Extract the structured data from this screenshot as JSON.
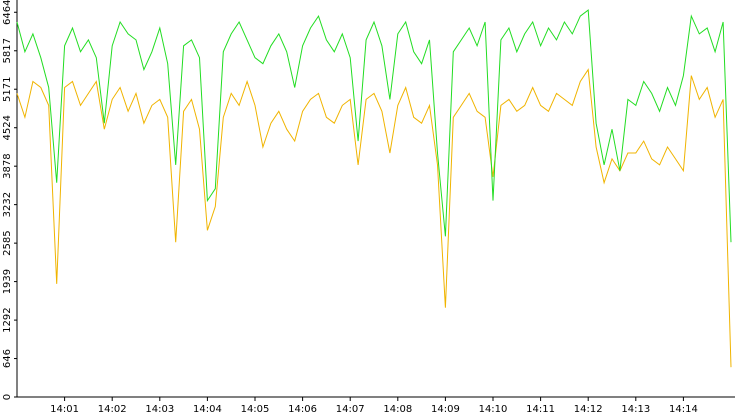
{
  "chart_data": {
    "type": "line",
    "categories": [
      null,
      null,
      null,
      null,
      null,
      null,
      "14:01",
      null,
      null,
      null,
      null,
      null,
      "14:02",
      null,
      null,
      null,
      null,
      null,
      "14:03",
      null,
      null,
      null,
      null,
      null,
      "14:04",
      null,
      null,
      null,
      null,
      null,
      "14:05",
      null,
      null,
      null,
      null,
      null,
      "14:06",
      null,
      null,
      null,
      null,
      null,
      "14:07",
      null,
      null,
      null,
      null,
      null,
      "14:08",
      null,
      null,
      null,
      null,
      null,
      "14:09",
      null,
      null,
      null,
      null,
      null,
      "14:10",
      null,
      null,
      null,
      null,
      null,
      "14:11",
      null,
      null,
      null,
      null,
      null,
      "14:12",
      null,
      null,
      null,
      null,
      null,
      "14:13",
      null,
      null,
      null,
      null,
      null,
      "14:14",
      null,
      null,
      null,
      null,
      null,
      null
    ],
    "series": [
      {
        "color": "#22dd22",
        "values": [
          6300,
          5800,
          6100,
          5700,
          5200,
          3600,
          5900,
          6200,
          5800,
          6000,
          5700,
          4600,
          5900,
          6300,
          6100,
          6000,
          5500,
          5800,
          6200,
          5600,
          3900,
          5900,
          6000,
          5700,
          3300,
          3500,
          5800,
          6100,
          6300,
          6000,
          5700,
          5600,
          5900,
          6100,
          5800,
          5200,
          5900,
          6200,
          6400,
          6000,
          5800,
          6100,
          5700,
          4300,
          6000,
          6300,
          5900,
          5000,
          6100,
          6300,
          5800,
          5600,
          6000,
          4100,
          2700,
          5800,
          6000,
          6200,
          5900,
          6300,
          3300,
          6000,
          6200,
          5800,
          6100,
          6300,
          5900,
          6200,
          6000,
          6300,
          6100,
          6400,
          6500,
          4600,
          3900,
          4500,
          3800,
          5000,
          4900,
          5300,
          5100,
          4800,
          5200,
          4900,
          5400,
          6400,
          6100,
          6200,
          5800,
          6300,
          2600
        ]
      },
      {
        "color": "#f0b400",
        "values": [
          5100,
          4700,
          5300,
          5200,
          4900,
          1900,
          5200,
          5300,
          4900,
          5100,
          5300,
          4500,
          5000,
          5200,
          4800,
          5100,
          4600,
          4900,
          5000,
          4700,
          2600,
          4800,
          5000,
          4500,
          2800,
          3200,
          4700,
          5100,
          4900,
          5300,
          4900,
          4200,
          4600,
          4800,
          4500,
          4300,
          4800,
          5000,
          5100,
          4700,
          4600,
          4900,
          5000,
          3900,
          5000,
          5100,
          4800,
          4100,
          4900,
          5200,
          4700,
          4600,
          4900,
          3900,
          1500,
          4700,
          4900,
          5100,
          4800,
          4700,
          3700,
          4900,
          5000,
          4800,
          4900,
          5200,
          4900,
          4800,
          5100,
          5000,
          4900,
          5300,
          5500,
          4200,
          3600,
          4000,
          3800,
          4100,
          4100,
          4300,
          4000,
          3900,
          4200,
          4000,
          3800,
          5400,
          5000,
          5200,
          4700,
          5000,
          500
        ]
      }
    ],
    "ylim": [
      0,
      6670
    ],
    "yticks": [
      0,
      646,
      1292,
      1939,
      2585,
      3232,
      3878,
      4524,
      5171,
      5817,
      6464
    ]
  }
}
